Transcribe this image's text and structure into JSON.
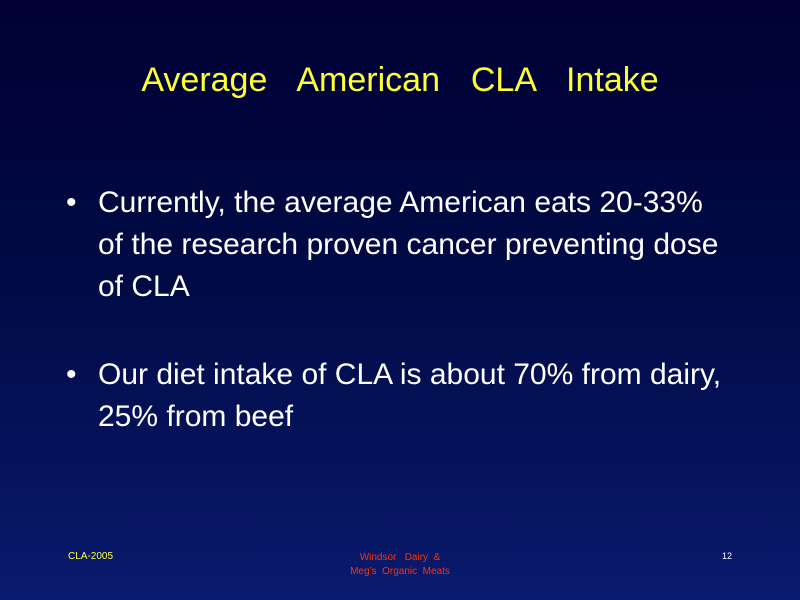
{
  "slide": {
    "title": "Average  American  CLA  Intake",
    "bullets": [
      {
        "marker": "•",
        "text": "Currently, the average American eats 20-33% of the research proven cancer preventing dose of CLA"
      },
      {
        "marker": "•",
        "text": "Our diet intake of CLA is about 70% from dairy, 25% from beef"
      }
    ],
    "footer": {
      "left": "CLA-2005",
      "center_line1": "Windsor   Dairy  &",
      "center_line2": "Meg’s  Organic  Meats",
      "page_number": "12"
    },
    "colors": {
      "background_top": "#000033",
      "background_bottom": "#0a1a6e",
      "title": "#ffff33",
      "body_text": "#ffffff",
      "footer_center": "#ff3300"
    }
  }
}
